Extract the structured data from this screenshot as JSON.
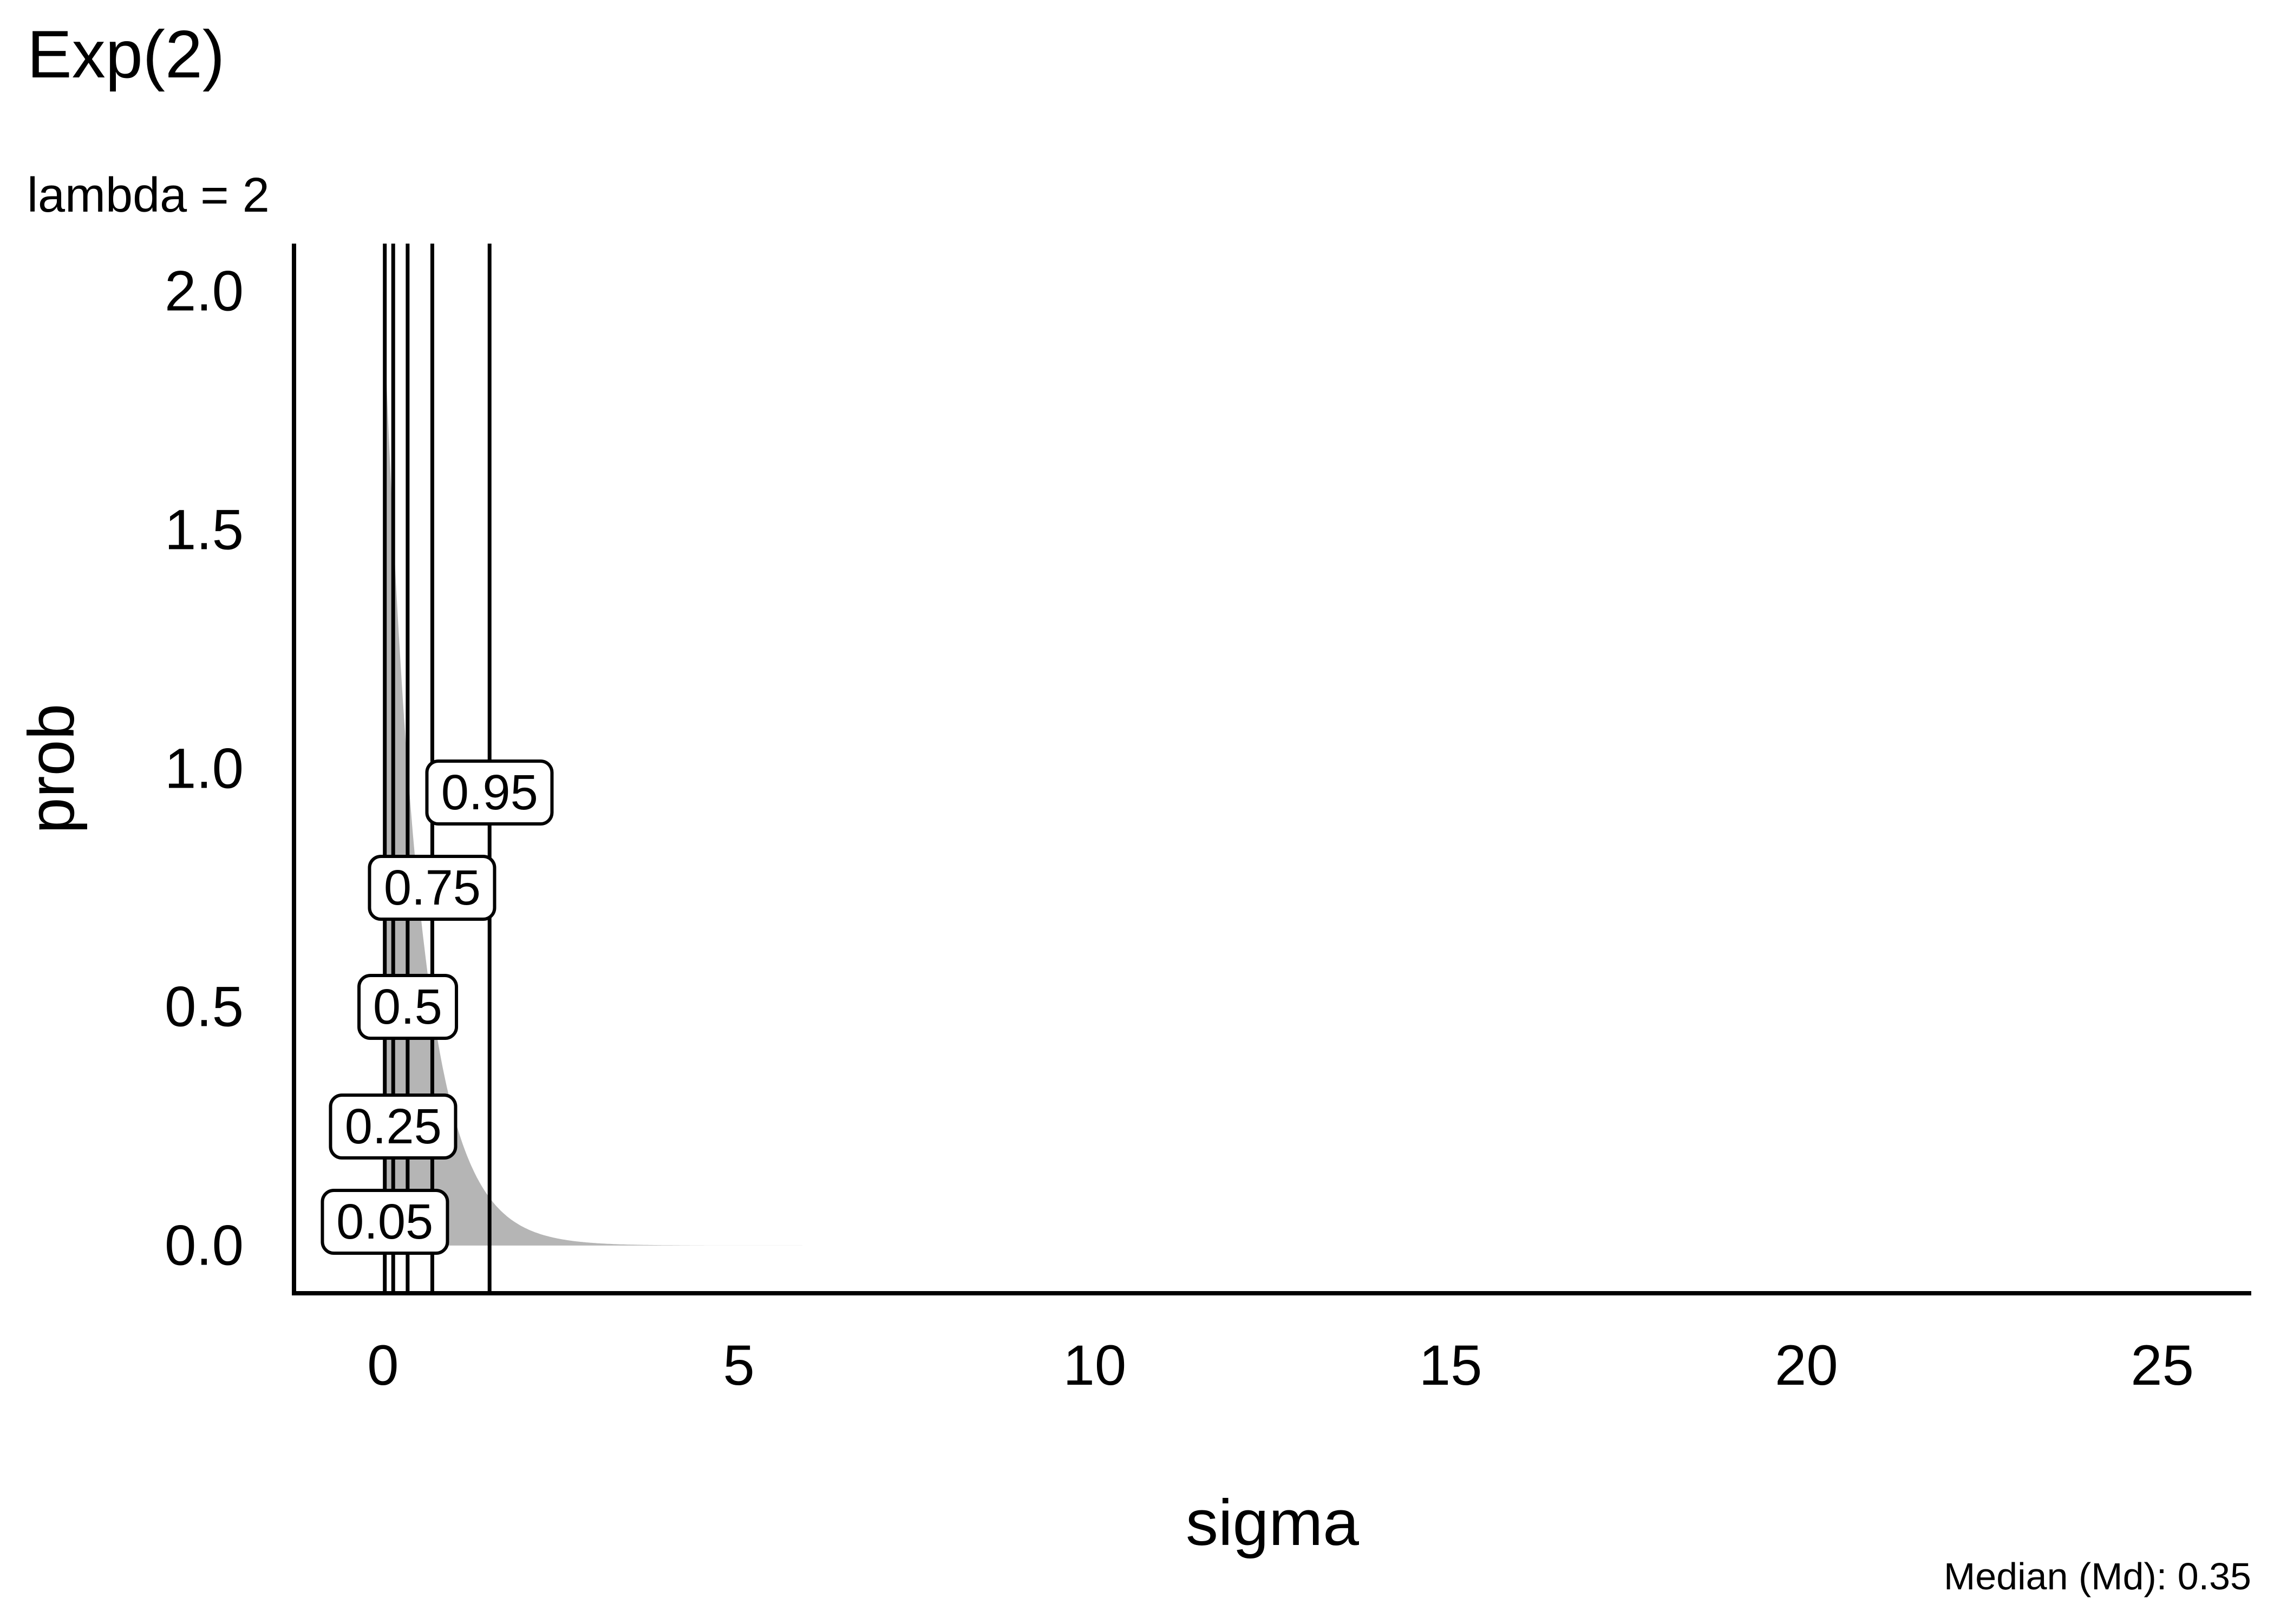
{
  "title": "Exp(2)",
  "subtitle": "lambda = 2",
  "caption": "Median (Md): 0.35",
  "chart_data": {
    "type": "area",
    "distribution": "Exponential",
    "parameter_text": "lambda = 2",
    "lambda": 2,
    "density_formula": "f(x) = 2*exp(-2*x)",
    "title": "Exp(2)",
    "xlabel": "sigma",
    "ylabel": "prob",
    "xlim": [
      0,
      25
    ],
    "ylim": [
      0,
      2
    ],
    "grid": false,
    "legend": false,
    "x_ticks": [
      {
        "label": "0",
        "value": 0
      },
      {
        "label": "5",
        "value": 5
      },
      {
        "label": "10",
        "value": 10
      },
      {
        "label": "15",
        "value": 15
      },
      {
        "label": "20",
        "value": 20
      },
      {
        "label": "25",
        "value": 25
      }
    ],
    "y_ticks": [
      {
        "label": "2.0",
        "value": 2.0
      },
      {
        "label": "1.5",
        "value": 1.5
      },
      {
        "label": "1.0",
        "value": 1.0
      },
      {
        "label": "0.5",
        "value": 0.5
      },
      {
        "label": "0.0",
        "value": 0.0
      }
    ],
    "quantiles": [
      {
        "label": "0.05",
        "p": 0.05,
        "x": 0.02565
      },
      {
        "label": "0.25",
        "p": 0.25,
        "x": 0.14384
      },
      {
        "label": "0.5",
        "p": 0.5,
        "x": 0.34657
      },
      {
        "label": "0.75",
        "p": 0.75,
        "x": 0.69315
      },
      {
        "label": "0.95",
        "p": 0.95,
        "x": 1.49787
      }
    ],
    "median": 0.35,
    "fill_color": "#b5b5b5",
    "line_color": "#000000",
    "background_color": "#ffffff"
  }
}
